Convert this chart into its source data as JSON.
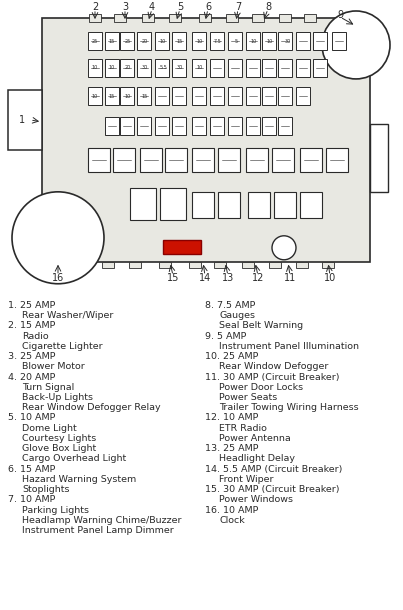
{
  "bg_color": "#ffffff",
  "line_color": "#2a2a2a",
  "fuse_box_bg": "#e8e8e2",
  "highlight_color": "#cc1100",
  "left_entries": [
    {
      "num": "1",
      "amp": "25 AMP",
      "items": [
        "Rear Washer/Wiper"
      ]
    },
    {
      "num": "2",
      "amp": "15 AMP",
      "items": [
        "Radio",
        "Cigarette Lighter"
      ]
    },
    {
      "num": "3",
      "amp": "25 AMP",
      "items": [
        "Blower Motor"
      ]
    },
    {
      "num": "4",
      "amp": "20 AMP",
      "items": [
        "Turn Signal",
        "Back-Up Lights",
        "Rear Window Defogger Relay"
      ]
    },
    {
      "num": "5",
      "amp": "10 AMP",
      "items": [
        "Dome Light",
        "Courtesy Lights",
        "Glove Box Light",
        "Cargo Overhead Light"
      ]
    },
    {
      "num": "6",
      "amp": "15 AMP",
      "items": [
        "Hazard Warning System",
        "Stoplights"
      ]
    },
    {
      "num": "7",
      "amp": "10 AMP",
      "items": [
        "Parking Lights",
        "Headlamp Warning Chime/Buzzer",
        "Instrument Panel Lamp Dimmer"
      ]
    }
  ],
  "right_entries": [
    {
      "num": "8",
      "amp": "7.5 AMP",
      "items": [
        "Gauges",
        "Seal Belt Warning"
      ]
    },
    {
      "num": "9",
      "amp": "5 AMP",
      "items": [
        "Instrument Panel Illumination"
      ]
    },
    {
      "num": "10",
      "amp": "25 AMP",
      "items": [
        "Rear Window Defogger"
      ]
    },
    {
      "num": "11",
      "amp": "30 AMP (Circuit Breaker)",
      "items": [
        "Power Door Locks",
        "Power Seats",
        "Trailer Towing Wiring Harness"
      ]
    },
    {
      "num": "12",
      "amp": "10 AMP",
      "items": [
        "ETR Radio",
        "Power Antenna"
      ]
    },
    {
      "num": "13",
      "amp": "25 AMP",
      "items": [
        "Headlight Delay"
      ]
    },
    {
      "num": "14",
      "amp": "5.5 AMP (Circuit Breaker)",
      "items": [
        "Front Wiper"
      ]
    },
    {
      "num": "15",
      "amp": "30 AMP (Circuit Breaker)",
      "items": [
        "Power Windows"
      ]
    },
    {
      "num": "16",
      "amp": "10 AMP",
      "items": [
        "Clock"
      ]
    }
  ],
  "text_fontsize": 6.8,
  "label_fontsize": 7.0
}
